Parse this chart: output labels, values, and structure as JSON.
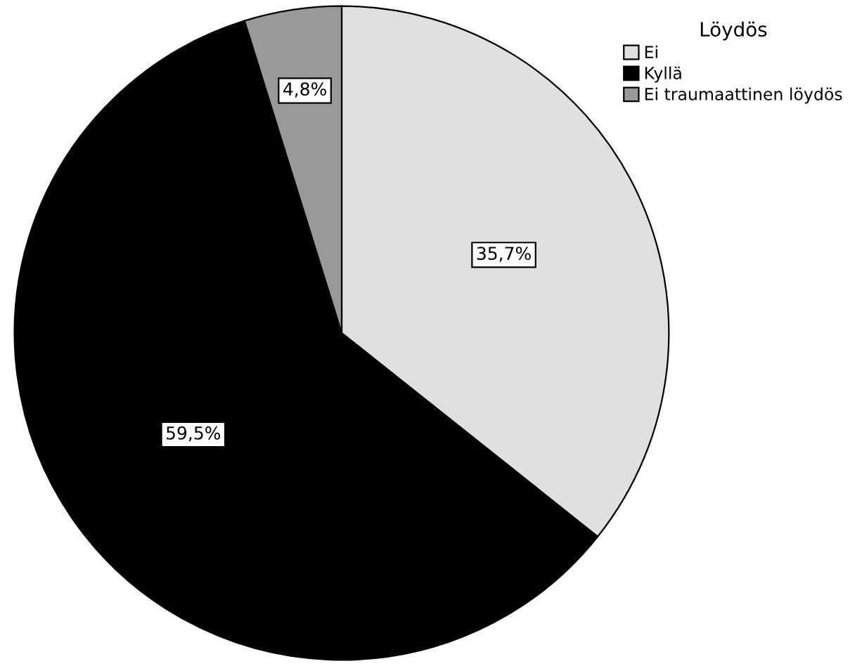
{
  "chart_data": {
    "type": "pie",
    "legend_title": "Löydös",
    "categories": [
      "Ei",
      "Kyllä",
      "Ei traumaattinen löydös"
    ],
    "values": [
      35.7,
      59.5,
      4.8
    ],
    "colors": [
      "#e0e0e0",
      "#000000",
      "#999999"
    ],
    "value_labels": [
      "35,7%",
      "59,5%",
      "4,8%"
    ],
    "legend": "top right"
  }
}
